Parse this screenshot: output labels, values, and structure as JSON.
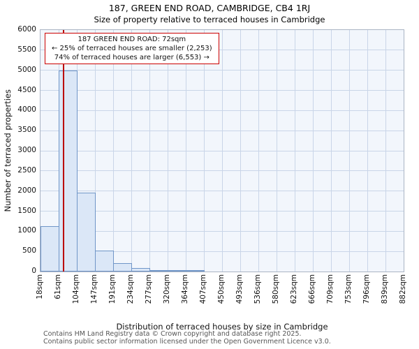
{
  "title": "187, GREEN END ROAD, CAMBRIDGE, CB4 1RJ",
  "subtitle": "Size of property relative to terraced houses in Cambridge",
  "chart_data": {
    "type": "bar",
    "categories_sqm": [
      18,
      61,
      104,
      147,
      191,
      234,
      277,
      320,
      364,
      407,
      450,
      493,
      536,
      580,
      623,
      666,
      709,
      753,
      796,
      839,
      882
    ],
    "tick_labels": [
      "18sqm",
      "61sqm",
      "104sqm",
      "147sqm",
      "191sqm",
      "234sqm",
      "277sqm",
      "320sqm",
      "364sqm",
      "407sqm",
      "450sqm",
      "493sqm",
      "536sqm",
      "580sqm",
      "623sqm",
      "666sqm",
      "709sqm",
      "753sqm",
      "796sqm",
      "839sqm",
      "882sqm"
    ],
    "values": [
      1130,
      5000,
      1960,
      520,
      210,
      95,
      35,
      15,
      5,
      0,
      0,
      0,
      0,
      0,
      0,
      0,
      0,
      0,
      0,
      0
    ],
    "title": "187, GREEN END ROAD, CAMBRIDGE, CB4 1RJ",
    "subtitle": "Size of property relative to terraced houses in Cambridge",
    "xlabel": "Distribution of terraced houses by size in Cambridge",
    "ylabel": "Number of terraced properties",
    "ylim": [
      0,
      6000
    ],
    "ytick_step": 500,
    "grid": true,
    "legend": "none",
    "marker": {
      "value_sqm": 72,
      "label": "187 GREEN END ROAD: 72sqm"
    }
  },
  "annotation": {
    "line1": "187 GREEN END ROAD: 72sqm",
    "line2": "← 25% of terraced houses are smaller (2,253)",
    "line3": "74% of terraced houses are larger (6,553) →"
  },
  "footer": {
    "line1": "Contains HM Land Registry data © Crown copyright and database right 2025.",
    "line2": "Contains public sector information licensed under the Open Government Licence v3.0."
  },
  "colors": {
    "bar_fill": "#dbe7f7",
    "bar_edge": "#7096c8",
    "grid": "#c9d5e8",
    "plot_bg": "#f2f6fc",
    "marker_line": "#bb0000",
    "annotation_border": "#cc0000",
    "footer_text": "#555555"
  }
}
